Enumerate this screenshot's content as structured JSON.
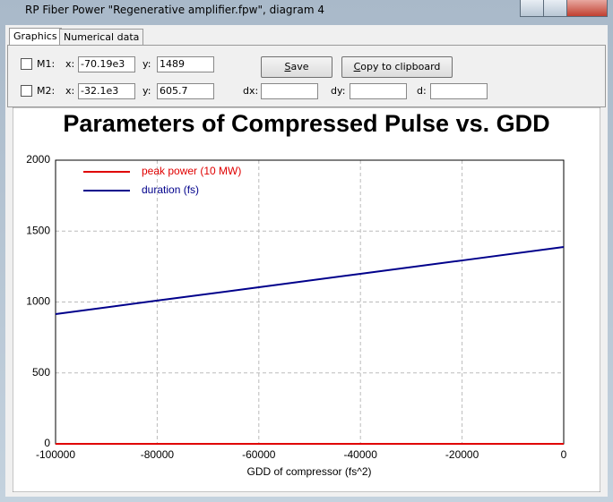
{
  "window": {
    "title": "RP Fiber Power \"Regenerative amplifier.fpw\", diagram 4"
  },
  "tabs": [
    "Graphics",
    "Numerical data"
  ],
  "markers": [
    {
      "label": "M1:",
      "x_label": "x:",
      "x": "-70.19e3",
      "y_label": "y:",
      "y": "1489"
    },
    {
      "label": "M2:",
      "x_label": "x:",
      "x": "-32.1e3",
      "y_label": "y:",
      "y": "605.7"
    }
  ],
  "delta_labels": [
    "dx:",
    "dy:",
    "d:"
  ],
  "buttons": [
    "Save",
    "Copy to clipboard"
  ],
  "chart_data": {
    "type": "line",
    "title": "Parameters of Compressed Pulse vs. GDD",
    "x_label": "GDD of compressor (fs^2)",
    "x": [
      -100000,
      -80000,
      -60000,
      -40000,
      -20000,
      0
    ],
    "series": [
      {
        "name": "peak power (10 MW)",
        "color": "#e00000",
        "values": [
          0,
          0,
          0,
          0,
          0,
          0
        ]
      },
      {
        "name": "duration (fs)",
        "color": "#00008b",
        "values": [
          915,
          1010,
          1104,
          1199,
          1293,
          1388
        ]
      }
    ],
    "xlim": [
      -100000,
      0
    ],
    "ylim": [
      0,
      2000
    ],
    "xticks": [
      -100000,
      -80000,
      -60000,
      -40000,
      -20000,
      0
    ],
    "yticks": [
      0,
      500,
      1000,
      1500,
      2000
    ],
    "grid": true,
    "legend": "upper left"
  }
}
